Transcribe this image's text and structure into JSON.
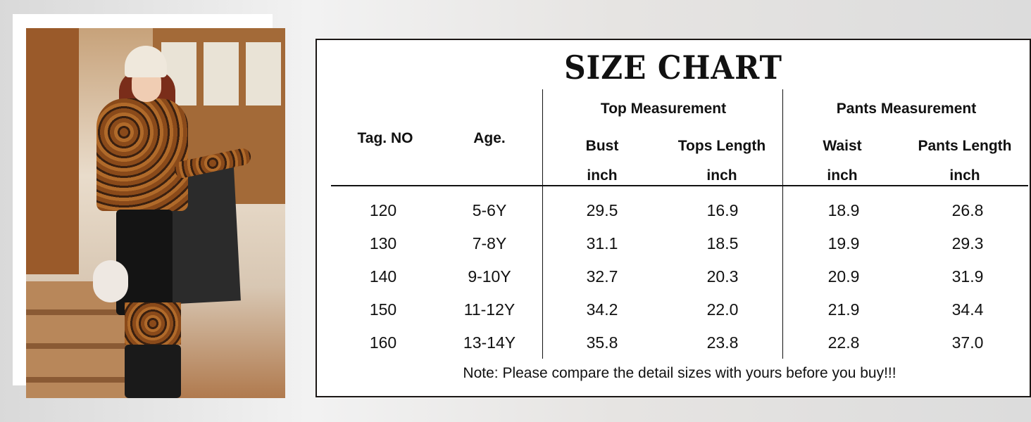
{
  "title": "SIZE CHART",
  "headers": {
    "tag": "Tag. NO",
    "age": "Age.",
    "top_group": "Top Measurement",
    "pants_group": "Pants Measurement",
    "bust": "Bust",
    "tops_length": "Tops Length",
    "waist": "Waist",
    "pants_length": "Pants Length",
    "unit": "inch"
  },
  "rows": [
    [
      "120",
      "5-6Y",
      "29.5",
      "16.9",
      "18.9",
      "26.8"
    ],
    [
      "130",
      "7-8Y",
      "31.1",
      "18.5",
      "19.9",
      "29.3"
    ],
    [
      "140",
      "9-10Y",
      "32.7",
      "20.3",
      "20.9",
      "31.9"
    ],
    [
      "150",
      "11-12Y",
      "34.2",
      "22.0",
      "21.9",
      "34.4"
    ],
    [
      "160",
      "13-14Y",
      "35.8",
      "23.8",
      "22.8",
      "37.0"
    ]
  ],
  "note": "Note: Please compare the detail sizes with yours before you buy!!!"
}
